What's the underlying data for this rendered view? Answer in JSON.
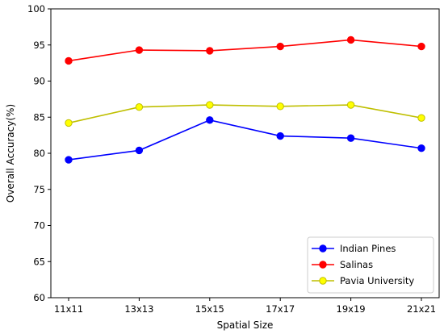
{
  "chart_data": {
    "type": "line",
    "title": "",
    "xlabel": "Spatial Size",
    "ylabel": "Overall Accuracy(%)",
    "categories": [
      "11x11",
      "13x13",
      "15x15",
      "17x17",
      "19x19",
      "21x21"
    ],
    "ylim": [
      60,
      100
    ],
    "yticks": [
      60,
      65,
      70,
      75,
      80,
      85,
      90,
      95,
      100
    ],
    "grid": false,
    "legend_position": "lower-right",
    "series": [
      {
        "name": "Indian Pines",
        "values": [
          79.1,
          80.4,
          84.6,
          82.4,
          82.1,
          80.7
        ],
        "line_color": "#0000ff",
        "marker_color": "#0000ff"
      },
      {
        "name": "Salinas",
        "values": [
          92.8,
          94.3,
          94.2,
          94.8,
          95.7,
          94.8
        ],
        "line_color": "#ff0000",
        "marker_color": "#ff0000"
      },
      {
        "name": "Pavia University",
        "values": [
          84.2,
          86.4,
          86.7,
          86.5,
          86.7,
          84.9
        ],
        "line_color": "#bfbf00",
        "marker_color": "#ffff00"
      }
    ]
  }
}
